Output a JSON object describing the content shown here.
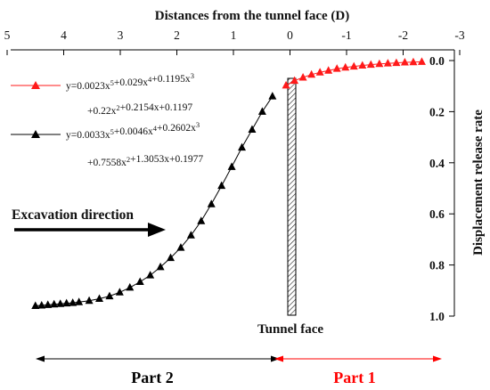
{
  "chart_data": {
    "type": "scatter",
    "title": "",
    "xlabel": "Distances from the tunnel face (D)",
    "ylabel": "Displacement release rate",
    "xlim": [
      5,
      -3
    ],
    "ylim": [
      0,
      1
    ],
    "x_ticks": [
      "5",
      "4",
      "3",
      "2",
      "1",
      "0",
      "-1",
      "-2",
      "-3"
    ],
    "y_ticks": [
      "0.0",
      "0.2",
      "0.4",
      "0.6",
      "0.8",
      "1.0"
    ],
    "x_axis_position": "top",
    "y_axis_position": "right",
    "x_reversed": true,
    "y_reversed": true,
    "grid": false,
    "legend_position": "top-left",
    "series": [
      {
        "equation_line1": "y=0.0023x⁵+0.029x⁴+0.1195x³",
        "equation_line2": "+0.22x²+0.2154x+0.1197",
        "color": "#ff1a1a",
        "marker": "triangle",
        "x": [
          0.07,
          -0.08,
          -0.23,
          -0.38,
          -0.53,
          -0.68,
          -0.83,
          -0.98,
          -1.13,
          -1.28,
          -1.43,
          -1.58,
          -1.73,
          -1.88,
          -2.03,
          -2.18,
          -2.33
        ],
        "y": [
          0.097,
          0.079,
          0.066,
          0.055,
          0.046,
          0.039,
          0.032,
          0.027,
          0.023,
          0.019,
          0.016,
          0.013,
          0.011,
          0.009,
          0.007,
          0.006,
          0.005
        ]
      },
      {
        "equation_line1": "y=0.0033x⁵+0.0046x⁴+0.2602x³",
        "equation_line2": "+0.7558x²+1.3053x+0.1977",
        "color": "#000000",
        "marker": "triangle",
        "x": [
          4.5,
          4.39,
          4.28,
          4.17,
          4.06,
          3.95,
          3.84,
          3.73,
          3.55,
          3.37,
          3.19,
          3.01,
          2.83,
          2.65,
          2.47,
          2.29,
          2.11,
          1.93,
          1.75,
          1.57,
          1.39,
          1.21,
          1.03,
          0.85,
          0.67,
          0.49,
          0.31
        ],
        "y": [
          0.96,
          0.958,
          0.956,
          0.954,
          0.952,
          0.95,
          0.948,
          0.945,
          0.94,
          0.932,
          0.922,
          0.907,
          0.888,
          0.866,
          0.84,
          0.808,
          0.772,
          0.732,
          0.684,
          0.628,
          0.562,
          0.49,
          0.416,
          0.34,
          0.27,
          0.2,
          0.14
        ]
      }
    ],
    "annotations": {
      "excavation": "Excavation direction",
      "tunnel_face": "Tunnel face",
      "part2": "Part 2",
      "part1": "Part 1",
      "part2_color": "#000000",
      "part1_color": "#ff0000"
    }
  }
}
